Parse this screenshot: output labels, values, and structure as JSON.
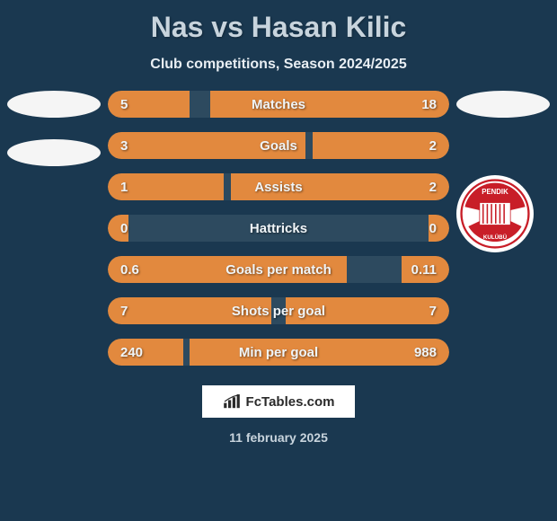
{
  "title": "Nas vs Hasan Kilic",
  "subtitle": "Club competitions, Season 2024/2025",
  "colors": {
    "background": "#1a3850",
    "bar_track": "#2d4a5f",
    "bar_fill": "#e2893e",
    "text_primary": "#c8d4dd",
    "text_light": "#e8eef3",
    "value_text": "#f0f5f8"
  },
  "club_badge": {
    "name": "Pendik Spor Kulübü",
    "primary_color": "#c81e28",
    "secondary_color": "#ffffff"
  },
  "stats": [
    {
      "label": "Matches",
      "left_value": "5",
      "right_value": "18",
      "left_width_pct": 24,
      "right_width_pct": 70
    },
    {
      "label": "Goals",
      "left_value": "3",
      "right_value": "2",
      "left_width_pct": 58,
      "right_width_pct": 40
    },
    {
      "label": "Assists",
      "left_value": "1",
      "right_value": "2",
      "left_width_pct": 34,
      "right_width_pct": 64
    },
    {
      "label": "Hattricks",
      "left_value": "0",
      "right_value": "0",
      "left_width_pct": 6,
      "right_width_pct": 6
    },
    {
      "label": "Goals per match",
      "left_value": "0.6",
      "right_value": "0.11",
      "left_width_pct": 70,
      "right_width_pct": 14
    },
    {
      "label": "Shots per goal",
      "left_value": "7",
      "right_value": "7",
      "left_width_pct": 48,
      "right_width_pct": 48
    },
    {
      "label": "Min per goal",
      "left_value": "240",
      "right_value": "988",
      "left_width_pct": 22,
      "right_width_pct": 76
    }
  ],
  "footer": {
    "brand": "FcTables.com",
    "date": "11 february 2025"
  }
}
